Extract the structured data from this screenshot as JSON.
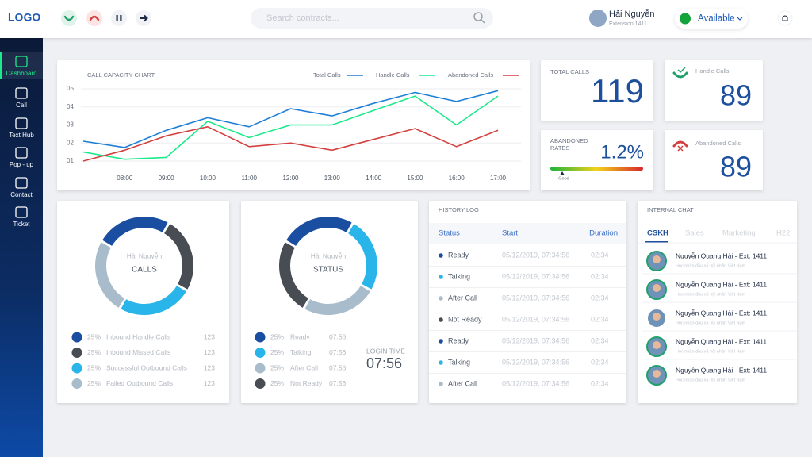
{
  "header": {
    "logo": "LOGO",
    "search_placeholder": "Search contracts...",
    "user": {
      "name": "Hải Nguyễn",
      "extension": "Extension.1411"
    },
    "status": "Available"
  },
  "sidebar": {
    "items": [
      "Dashboard",
      "Call",
      "Text Hub",
      "Pop - up",
      "Contact",
      "Ticket"
    ]
  },
  "chart_data": {
    "type": "line",
    "title": "CALL CAPACITY CHART",
    "categories": [
      null,
      "08:00",
      "09:00",
      "10:00",
      "11:00",
      "12:00",
      "13:00",
      "14:00",
      "15:00",
      "16:00",
      "17:00"
    ],
    "series": [
      {
        "name": "Total Calls",
        "color": "#1f7fd6",
        "values": [
          2.1,
          1.75,
          2.7,
          3.4,
          2.9,
          3.9,
          3.5,
          4.2,
          4.8,
          4.3,
          4.9
        ]
      },
      {
        "name": "Handle Calls",
        "color": "#1de98b",
        "values": [
          1.5,
          1.1,
          1.2,
          3.2,
          2.3,
          3.0,
          3.0,
          3.8,
          4.6,
          3.0,
          4.6
        ]
      },
      {
        "name": "Abandoned Calls",
        "color": "#d2413f",
        "values": [
          1.0,
          1.6,
          2.4,
          2.9,
          1.8,
          2.0,
          1.6,
          2.2,
          2.8,
          1.8,
          2.7
        ]
      }
    ],
    "ylim": [
      0.5,
      5.5
    ],
    "yticks": [
      {
        "value": 1,
        "label": "01"
      },
      {
        "value": 2,
        "label": "02"
      },
      {
        "value": 3,
        "label": "03"
      },
      {
        "value": 4,
        "label": "04"
      },
      {
        "value": 5,
        "label": "05"
      }
    ],
    "grid": true
  },
  "stats": {
    "total_calls": {
      "label": "TOTAL CALLS",
      "value": 119
    },
    "handle_calls": {
      "label": "Handle Calls",
      "value": 89
    },
    "abandoned_rates": {
      "label_lines": [
        "ABANDONED",
        "RATES"
      ],
      "value": "1.2%",
      "gauge_label": "Good"
    },
    "abandoned_calls": {
      "label": "Abandoned Calls",
      "value": 89
    }
  },
  "calls_panel": {
    "name": "Hải Nguyễn",
    "title": "CALLS",
    "items": [
      {
        "value": 25,
        "value_label": "25%",
        "label": "Inbound Handle Calls",
        "count": 123,
        "color": "#1a4ea0"
      },
      {
        "value": 25,
        "value_label": "25%",
        "label": "Inbound Missed Calls",
        "count": 123,
        "color": "#484c53"
      },
      {
        "value": 25,
        "value_label": "25%",
        "label": "Successful Outbound Calls",
        "count": 123,
        "color": "#2ab5ea"
      },
      {
        "value": 25,
        "value_label": "25%",
        "label": "Failed Outbound Calls",
        "count": 123,
        "color": "#a8bccb"
      }
    ]
  },
  "status_panel": {
    "name": "Hải Nguyễn",
    "title": "STATUS",
    "items": [
      {
        "value": 25,
        "value_label": "25%",
        "label": "Ready",
        "time": "07:56",
        "color": "#1a4ea0"
      },
      {
        "value": 25,
        "value_label": "25%",
        "label": "Talking",
        "time": "07:56",
        "color": "#2ab5ea"
      },
      {
        "value": 25,
        "value_label": "25%",
        "label": "After Call",
        "time": "07:56",
        "color": "#a8bccb"
      },
      {
        "value": 25,
        "value_label": "25%",
        "label": "Not Ready",
        "time": "07:56",
        "color": "#484c53"
      }
    ],
    "login_time": {
      "label": "LOGIN TIME",
      "value": "07:56"
    }
  },
  "history_log": {
    "title": "HISTORY LOG",
    "columns": [
      "Status",
      "Start",
      "Duration"
    ],
    "rows": [
      {
        "status": "Ready",
        "start": "05/12/2019, 07:34:56",
        "duration": "02:34",
        "color": "#1a4ea0"
      },
      {
        "status": "Talking",
        "start": "05/12/2019, 07:34:56",
        "duration": "02:34",
        "color": "#2ab5ea"
      },
      {
        "status": "After Call",
        "start": "05/12/2019, 07:34:56",
        "duration": "02:34",
        "color": "#a8bccb"
      },
      {
        "status": "Not Ready",
        "start": "05/12/2019, 07:34:56",
        "duration": "02:34",
        "color": "#484c53"
      },
      {
        "status": "Ready",
        "start": "05/12/2019, 07:34:56",
        "duration": "02:34",
        "color": "#1a4ea0"
      },
      {
        "status": "Talking",
        "start": "05/12/2019, 07:34:56",
        "duration": "02:34",
        "color": "#2ab5ea"
      },
      {
        "status": "After Call",
        "start": "05/12/2019, 07:34:56",
        "duration": "02:34",
        "color": "#a8bccb"
      }
    ]
  },
  "internal_chat": {
    "title": "INTERNAL CHAT",
    "tabs": [
      "CSKH",
      "Sales",
      "Marketing",
      "H22"
    ],
    "messages": [
      {
        "name": "Nguyễn Quang Hải - Ext: 1411",
        "text": "Học nhân đầu xã hội nhân Việt Nam"
      },
      {
        "name": "Nguyễn Quang Hải - Ext: 1411",
        "text": "Học nhân đầu xã hội nhân Việt Nam"
      },
      {
        "name": "Nguyễn Quang Hải - Ext: 1411",
        "text": "Học nhân đầu xã hội nhân Việt Nam"
      },
      {
        "name": "Nguyễn Quang Hải - Ext: 1411",
        "text": "Học nhân đầu xã hội nhân Việt Nam"
      },
      {
        "name": "Nguyễn Quang Hải - Ext: 1411",
        "text": "Học nhân đầu xã hội nhân Việt Nam"
      }
    ]
  }
}
